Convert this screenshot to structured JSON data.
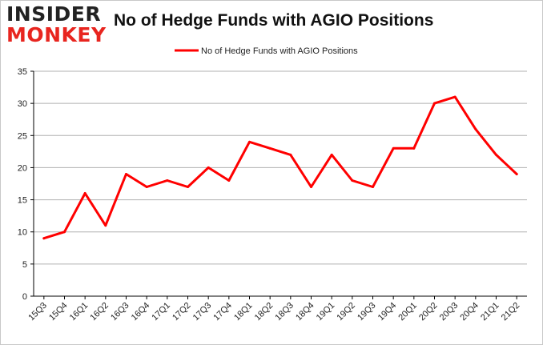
{
  "logo": {
    "line1": "INSIDER",
    "line2": "MONKEY"
  },
  "colors": {
    "series": "#ff0000",
    "grid": "#b0b0b0",
    "axis": "#000000",
    "brand_red": "#e8251f"
  },
  "chart_data": {
    "type": "line",
    "title": "No of Hedge Funds with AGIO Positions",
    "xlabel": "",
    "ylabel": "",
    "ylim": [
      0,
      35
    ],
    "yticks": [
      0,
      5,
      10,
      15,
      20,
      25,
      30,
      35
    ],
    "grid": true,
    "legend_position": "top-center",
    "categories": [
      "15Q3",
      "15Q4",
      "16Q1",
      "16Q2",
      "16Q3",
      "16Q4",
      "17Q1",
      "17Q2",
      "17Q3",
      "17Q4",
      "18Q1",
      "18Q2",
      "18Q3",
      "18Q4",
      "19Q1",
      "19Q2",
      "19Q3",
      "19Q4",
      "20Q1",
      "20Q2",
      "20Q3",
      "20Q4",
      "21Q1",
      "21Q2"
    ],
    "series": [
      {
        "name": "No of Hedge Funds with AGIO Positions",
        "values": [
          9,
          10,
          16,
          11,
          19,
          17,
          18,
          17,
          20,
          18,
          24,
          23,
          22,
          17,
          22,
          18,
          17,
          23,
          23,
          30,
          31,
          26,
          22,
          19
        ]
      }
    ]
  }
}
